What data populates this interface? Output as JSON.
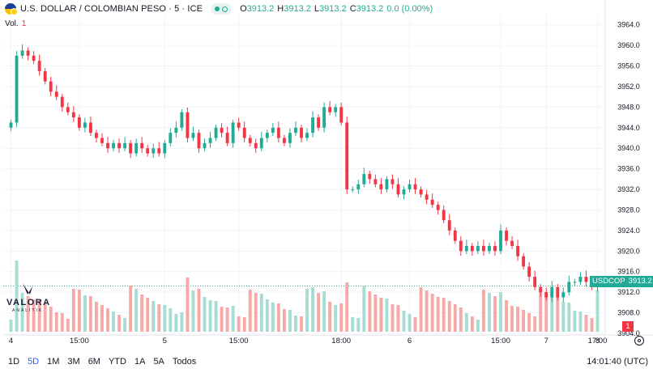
{
  "header": {
    "symbol_title": "U.S. DOLLAR / COLOMBIAN PESO · 5 · ICE",
    "ohlc": [
      {
        "label": "O",
        "value": "3913.2"
      },
      {
        "label": "H",
        "value": "3913.2"
      },
      {
        "label": "L",
        "value": "3913.2"
      },
      {
        "label": "C",
        "value": "3913.2"
      },
      {
        "label": "",
        "value": "0.0 (0.00%)"
      }
    ],
    "volume_label": "Vol.",
    "volume_value": "1"
  },
  "logo": {
    "name": "VALORA",
    "sub": "ANALITIK"
  },
  "price_tag": {
    "symbol": "USDCOP",
    "price": "3913.2"
  },
  "volume_badge": "1",
  "timeframes": [
    "1D",
    "5D",
    "1M",
    "3M",
    "6M",
    "YTD",
    "1A",
    "5A",
    "Todos"
  ],
  "active_timeframe": "5D",
  "clock": "14:01:40 (UTC)",
  "colors": {
    "up": "#22ab94",
    "down": "#f23645",
    "vol_up": "#a6dcd2",
    "vol_down": "#f7a9a7",
    "accent": "#2962ff"
  },
  "chart_data": {
    "type": "candlestick",
    "ylim": [
      3904,
      3966
    ],
    "y_ticks": [
      "3964.0",
      "3960.0",
      "3956.0",
      "3952.0",
      "3948.0",
      "3944.0",
      "3940.0",
      "3936.0",
      "3932.0",
      "3928.0",
      "3924.0",
      "3920.0",
      "3916.0",
      "3912.0",
      "3908.0",
      "3904.0"
    ],
    "x_ticks": [
      "4",
      "15:00",
      "5",
      "15:00",
      "18:00",
      "6",
      "15:00",
      "7",
      "17:00",
      "8"
    ],
    "last_price": 3913.2,
    "segments": [
      {
        "label": "4",
        "closes": [
          3945,
          3958,
          3959,
          3958,
          3957,
          3955,
          3953,
          3951,
          3950,
          3948,
          3947,
          3946,
          3944,
          3945,
          3943,
          3942,
          3941,
          3940,
          3941,
          3940,
          3941,
          3939,
          3941,
          3940,
          3939,
          3940,
          3939
        ]
      },
      {
        "label": "5",
        "closes": [
          3941,
          3943,
          3944,
          3947,
          3942,
          3943,
          3940,
          3941,
          3942,
          3944,
          3943,
          3941,
          3945,
          3944,
          3942,
          3941,
          3940,
          3942,
          3943,
          3944,
          3942,
          3941,
          3943,
          3944,
          3942,
          3943,
          3946,
          3944,
          3948,
          3947,
          3948
        ]
      },
      {
        "label": "6",
        "closes": [
          3945,
          3932,
          3932,
          3933,
          3935,
          3934,
          3933,
          3932,
          3934,
          3933,
          3931,
          3932,
          3933,
          3932,
          3931,
          3930,
          3929,
          3928,
          3926,
          3924,
          3922,
          3920,
          3921,
          3920,
          3921,
          3920,
          3921,
          3920
        ]
      },
      {
        "label": "7",
        "closes": [
          3924,
          3922,
          3921,
          3919,
          3917,
          3915,
          3913,
          3912,
          3911,
          3913,
          3911,
          3912,
          3914,
          3914,
          3915,
          3914,
          3913,
          3913.2
        ]
      }
    ]
  }
}
